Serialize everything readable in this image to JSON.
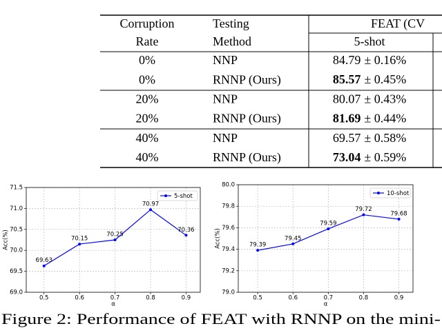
{
  "table": {
    "header": [
      [
        "Corruption",
        "Testing",
        "FEAT (CV"
      ],
      [
        "Rate",
        "Method",
        "5-shot"
      ]
    ],
    "rows": [
      {
        "rate": "0%",
        "method": "NNP",
        "acc": "84.79",
        "err": "± 0.16%",
        "bold": false
      },
      {
        "rate": "0%",
        "method": "RNNP (Ours)",
        "acc": "85.57",
        "err": "± 0.45%",
        "bold": true
      },
      {
        "rate": "20%",
        "method": "NNP",
        "acc": "80.07",
        "err": "± 0.43%",
        "bold": false
      },
      {
        "rate": "20%",
        "method": "RNNP (Ours)",
        "acc": "81.69",
        "err": "± 0.44%",
        "bold": true
      },
      {
        "rate": "40%",
        "method": "NNP",
        "acc": "69.57",
        "err": "± 0.58%",
        "bold": false
      },
      {
        "rate": "40%",
        "method": "RNNP (Ours)",
        "acc": "73.04",
        "err": "± 0.59%",
        "bold": true
      }
    ]
  },
  "chart_data": [
    {
      "type": "line",
      "x_label": "α",
      "y_label": "Acc(%)",
      "x": [
        0.5,
        0.6,
        0.7,
        0.8,
        0.9
      ],
      "series": [
        {
          "name": "5-shot",
          "color": "#0000ff",
          "values": [
            69.63,
            70.15,
            70.25,
            70.97,
            70.36
          ]
        }
      ],
      "xlim": [
        0.45,
        0.94
      ],
      "xticks": [
        0.5,
        0.6,
        0.7,
        0.8,
        0.9
      ],
      "ylim": [
        69.0,
        71.5
      ],
      "yticks": [
        {
          "value": 69.0,
          "label": "69.0"
        },
        {
          "value": 69.5,
          "label": "69.5"
        },
        {
          "value": 70.0,
          "label": "70.0"
        },
        {
          "value": 70.5,
          "label": "70.5"
        },
        {
          "value": 71.0,
          "label": "71.0"
        },
        {
          "value": 71.5,
          "label": "71.5"
        }
      ],
      "grid": true,
      "legend": "upper right"
    },
    {
      "type": "line",
      "x_label": "α",
      "y_label": "Acc(%)",
      "x": [
        0.5,
        0.6,
        0.7,
        0.8,
        0.9
      ],
      "series": [
        {
          "name": "10-shot",
          "color": "#0000ff",
          "values": [
            79.39,
            79.45,
            79.59,
            79.72,
            79.68
          ]
        }
      ],
      "xlim": [
        0.445,
        0.94
      ],
      "xticks": [
        0.5,
        0.6,
        0.7,
        0.8,
        0.9
      ],
      "ylim": [
        79.0,
        80.0
      ],
      "yticks": [
        {
          "value": 79.0,
          "label": "79.0"
        },
        {
          "value": 79.2,
          "label": "79.2"
        },
        {
          "value": 79.4,
          "label": "79.4"
        },
        {
          "value": 79.6,
          "label": "79.6"
        },
        {
          "value": 79.8,
          "label": "79.8"
        },
        {
          "value": 80.0,
          "label": "80.0"
        }
      ],
      "grid": true,
      "legend": "upper right"
    }
  ],
  "caption": "Figure 2: Performance of FEAT with RNNP on the mini-"
}
